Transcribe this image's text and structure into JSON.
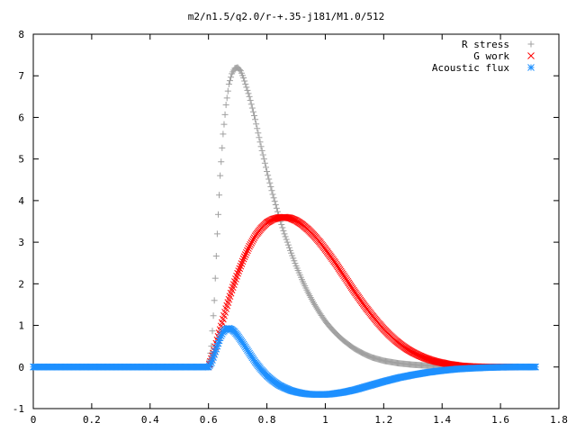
{
  "chart_data": {
    "type": "scatter",
    "title": "m2/n1.5/q2.0/r-+.35-j181/M1.0/512",
    "xlim": [
      0,
      1.8
    ],
    "ylim": [
      -1,
      8
    ],
    "x_ticks": [
      "0",
      "0.2",
      "0.4",
      "0.6",
      "0.8",
      "1",
      "1.2",
      "1.4",
      "1.6",
      "1.8"
    ],
    "y_ticks": [
      "-1",
      "0",
      "1",
      "2",
      "3",
      "4",
      "5",
      "6",
      "7",
      "8"
    ],
    "x_tick_values": [
      0,
      0.2,
      0.4,
      0.6,
      0.8,
      1.0,
      1.2,
      1.4,
      1.6,
      1.8
    ],
    "y_tick_values": [
      -1,
      0,
      1,
      2,
      3,
      4,
      5,
      6,
      7,
      8
    ],
    "grid": false,
    "legend_position": "top-right",
    "series": [
      {
        "name": "R stress",
        "marker": "plus",
        "color": "#a0a0a0",
        "points": [
          [
            0.6,
            0.0
          ],
          [
            0.61,
            0.5
          ],
          [
            0.62,
            1.6
          ],
          [
            0.63,
            3.2
          ],
          [
            0.64,
            4.6
          ],
          [
            0.65,
            5.6
          ],
          [
            0.66,
            6.3
          ],
          [
            0.67,
            6.8
          ],
          [
            0.68,
            7.05
          ],
          [
            0.69,
            7.18
          ],
          [
            0.7,
            7.2
          ],
          [
            0.71,
            7.12
          ],
          [
            0.72,
            6.95
          ],
          [
            0.74,
            6.5
          ],
          [
            0.76,
            5.95
          ],
          [
            0.78,
            5.3
          ],
          [
            0.8,
            4.7
          ],
          [
            0.82,
            4.15
          ],
          [
            0.84,
            3.65
          ],
          [
            0.86,
            3.2
          ],
          [
            0.88,
            2.8
          ],
          [
            0.9,
            2.43
          ],
          [
            0.92,
            2.1
          ],
          [
            0.94,
            1.8
          ],
          [
            0.96,
            1.54
          ],
          [
            0.98,
            1.31
          ],
          [
            1.0,
            1.1
          ],
          [
            1.02,
            0.93
          ],
          [
            1.04,
            0.78
          ],
          [
            1.06,
            0.65
          ],
          [
            1.08,
            0.54
          ],
          [
            1.1,
            0.44
          ],
          [
            1.12,
            0.36
          ],
          [
            1.14,
            0.29
          ],
          [
            1.16,
            0.23
          ],
          [
            1.18,
            0.19
          ],
          [
            1.2,
            0.15
          ],
          [
            1.25,
            0.09
          ],
          [
            1.3,
            0.055
          ],
          [
            1.35,
            0.033
          ],
          [
            1.4,
            0.02
          ],
          [
            1.45,
            0.012
          ],
          [
            1.5,
            0.007
          ],
          [
            1.55,
            0.004
          ],
          [
            1.6,
            0.002
          ],
          [
            1.65,
            0.001
          ],
          [
            1.7,
            0.0
          ],
          [
            1.72,
            0.0
          ]
        ]
      },
      {
        "name": "G work",
        "marker": "cross",
        "color": "#ff0000",
        "points": [
          [
            0.6,
            0.0
          ],
          [
            0.62,
            0.4
          ],
          [
            0.64,
            0.9
          ],
          [
            0.66,
            1.4
          ],
          [
            0.68,
            1.85
          ],
          [
            0.7,
            2.25
          ],
          [
            0.72,
            2.6
          ],
          [
            0.74,
            2.9
          ],
          [
            0.76,
            3.15
          ],
          [
            0.78,
            3.33
          ],
          [
            0.8,
            3.47
          ],
          [
            0.82,
            3.55
          ],
          [
            0.84,
            3.59
          ],
          [
            0.86,
            3.6
          ],
          [
            0.88,
            3.58
          ],
          [
            0.9,
            3.52
          ],
          [
            0.92,
            3.43
          ],
          [
            0.94,
            3.31
          ],
          [
            0.96,
            3.17
          ],
          [
            0.98,
            3.01
          ],
          [
            1.0,
            2.83
          ],
          [
            1.02,
            2.64
          ],
          [
            1.04,
            2.44
          ],
          [
            1.06,
            2.23
          ],
          [
            1.08,
            2.02
          ],
          [
            1.1,
            1.81
          ],
          [
            1.12,
            1.61
          ],
          [
            1.14,
            1.42
          ],
          [
            1.16,
            1.24
          ],
          [
            1.18,
            1.07
          ],
          [
            1.2,
            0.91
          ],
          [
            1.22,
            0.77
          ],
          [
            1.24,
            0.64
          ],
          [
            1.26,
            0.53
          ],
          [
            1.28,
            0.43
          ],
          [
            1.3,
            0.35
          ],
          [
            1.32,
            0.28
          ],
          [
            1.34,
            0.22
          ],
          [
            1.36,
            0.17
          ],
          [
            1.38,
            0.13
          ],
          [
            1.4,
            0.1
          ],
          [
            1.42,
            0.07
          ],
          [
            1.44,
            0.05
          ],
          [
            1.46,
            0.03
          ],
          [
            1.48,
            0.02
          ],
          [
            1.5,
            0.01
          ],
          [
            1.55,
            0.0
          ],
          [
            1.6,
            0.0
          ],
          [
            1.65,
            0.0
          ]
        ]
      },
      {
        "name": "Acoustic flux",
        "marker": "star",
        "color": "#1e90ff",
        "points": [
          [
            0.0,
            0.0
          ],
          [
            0.1,
            0.0
          ],
          [
            0.2,
            0.0
          ],
          [
            0.3,
            0.0
          ],
          [
            0.4,
            0.0
          ],
          [
            0.5,
            0.0
          ],
          [
            0.55,
            0.0
          ],
          [
            0.6,
            0.0
          ],
          [
            0.61,
            0.1
          ],
          [
            0.62,
            0.3
          ],
          [
            0.63,
            0.5
          ],
          [
            0.64,
            0.7
          ],
          [
            0.65,
            0.84
          ],
          [
            0.66,
            0.91
          ],
          [
            0.67,
            0.93
          ],
          [
            0.68,
            0.9
          ],
          [
            0.69,
            0.84
          ],
          [
            0.7,
            0.75
          ],
          [
            0.72,
            0.55
          ],
          [
            0.74,
            0.33
          ],
          [
            0.76,
            0.12
          ],
          [
            0.78,
            -0.06
          ],
          [
            0.8,
            -0.21
          ],
          [
            0.82,
            -0.33
          ],
          [
            0.84,
            -0.43
          ],
          [
            0.86,
            -0.5
          ],
          [
            0.88,
            -0.56
          ],
          [
            0.9,
            -0.6
          ],
          [
            0.92,
            -0.63
          ],
          [
            0.94,
            -0.65
          ],
          [
            0.96,
            -0.66
          ],
          [
            0.98,
            -0.66
          ],
          [
            1.0,
            -0.66
          ],
          [
            1.02,
            -0.65
          ],
          [
            1.04,
            -0.63
          ],
          [
            1.06,
            -0.61
          ],
          [
            1.08,
            -0.58
          ],
          [
            1.1,
            -0.55
          ],
          [
            1.12,
            -0.51
          ],
          [
            1.14,
            -0.47
          ],
          [
            1.16,
            -0.43
          ],
          [
            1.18,
            -0.39
          ],
          [
            1.2,
            -0.35
          ],
          [
            1.25,
            -0.26
          ],
          [
            1.3,
            -0.19
          ],
          [
            1.35,
            -0.13
          ],
          [
            1.4,
            -0.085
          ],
          [
            1.45,
            -0.05
          ],
          [
            1.5,
            -0.03
          ],
          [
            1.55,
            -0.015
          ],
          [
            1.6,
            -0.005
          ],
          [
            1.65,
            0.0
          ],
          [
            1.7,
            0.0
          ],
          [
            1.72,
            0.0
          ]
        ]
      }
    ]
  }
}
